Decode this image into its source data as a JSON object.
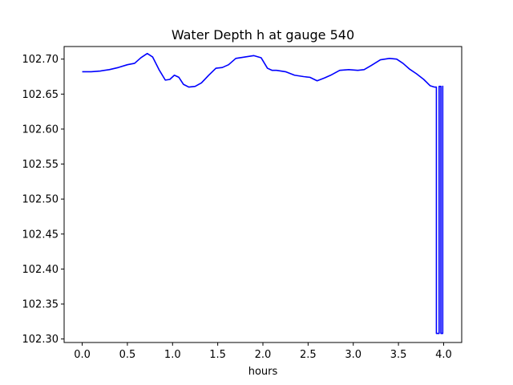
{
  "chart_data": {
    "type": "line",
    "title": "Water Depth h at gauge 540",
    "xlabel": "hours",
    "ylabel": "",
    "xlim": [
      -0.2,
      4.2
    ],
    "ylim": [
      102.295,
      102.718
    ],
    "grid": false,
    "x_ticks": [
      "0.0",
      "0.5",
      "1.0",
      "1.5",
      "2.0",
      "2.5",
      "3.0",
      "3.5",
      "4.0"
    ],
    "y_ticks": [
      "102.30",
      "102.35",
      "102.40",
      "102.45",
      "102.50",
      "102.55",
      "102.60",
      "102.65",
      "102.70"
    ],
    "series": [
      {
        "color": "#0000ff",
        "x": [
          0.0,
          0.1,
          0.2,
          0.3,
          0.4,
          0.5,
          0.58,
          0.65,
          0.72,
          0.78,
          0.85,
          0.92,
          0.97,
          1.02,
          1.07,
          1.12,
          1.18,
          1.25,
          1.32,
          1.4,
          1.48,
          1.55,
          1.62,
          1.7,
          1.8,
          1.9,
          1.98,
          2.05,
          2.1,
          2.15,
          2.25,
          2.35,
          2.45,
          2.52,
          2.6,
          2.68,
          2.75,
          2.85,
          2.95,
          3.05,
          3.12,
          3.2,
          3.3,
          3.4,
          3.48,
          3.55,
          3.62,
          3.7,
          3.78,
          3.85,
          3.9,
          3.92,
          3.92,
          3.95,
          3.95,
          3.97,
          3.97,
          3.99,
          3.99
        ],
        "y": [
          102.682,
          102.682,
          102.683,
          102.685,
          102.688,
          102.692,
          102.694,
          102.702,
          102.708,
          102.703,
          102.685,
          102.67,
          102.671,
          102.677,
          102.674,
          102.664,
          102.66,
          102.661,
          102.666,
          102.677,
          102.687,
          102.688,
          102.692,
          102.701,
          102.703,
          102.705,
          102.702,
          102.687,
          102.684,
          102.684,
          102.682,
          102.677,
          102.675,
          102.674,
          102.669,
          102.673,
          102.677,
          102.684,
          102.685,
          102.684,
          102.685,
          102.691,
          102.699,
          102.701,
          102.7,
          102.694,
          102.686,
          102.679,
          102.671,
          102.662,
          102.66,
          102.66,
          102.308,
          102.308,
          102.661,
          102.661,
          102.308,
          102.308,
          102.662
        ]
      }
    ]
  }
}
